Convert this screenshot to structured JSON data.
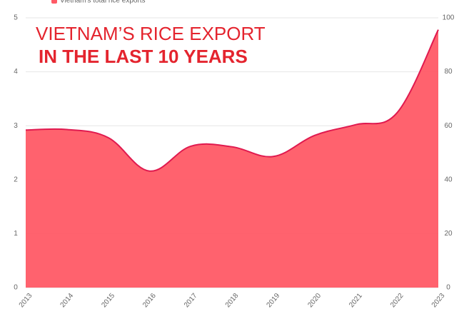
{
  "chart_data": {
    "type": "area",
    "title": "VIETNAM’S RICE EXPORT",
    "subtitle": "IN THE LAST 10 YEARS",
    "categories": [
      "2013",
      "2014",
      "2015",
      "2016",
      "2017",
      "2018",
      "2019",
      "2020",
      "2021",
      "2022",
      "2023"
    ],
    "series": [
      {
        "name": "Vietnam's total rice exports",
        "color": "#ff5a66",
        "line_color": "#e01a4f",
        "values": [
          2.92,
          2.93,
          2.78,
          2.16,
          2.62,
          2.61,
          2.43,
          2.82,
          3.02,
          3.24,
          4.78
        ]
      }
    ],
    "ylim": [
      0,
      5
    ],
    "yticks": [
      0,
      1,
      2,
      3,
      4,
      5
    ],
    "y2lim": [
      0,
      100
    ],
    "y2ticks": [
      0,
      20,
      40,
      60,
      80,
      100
    ],
    "grid": true
  }
}
